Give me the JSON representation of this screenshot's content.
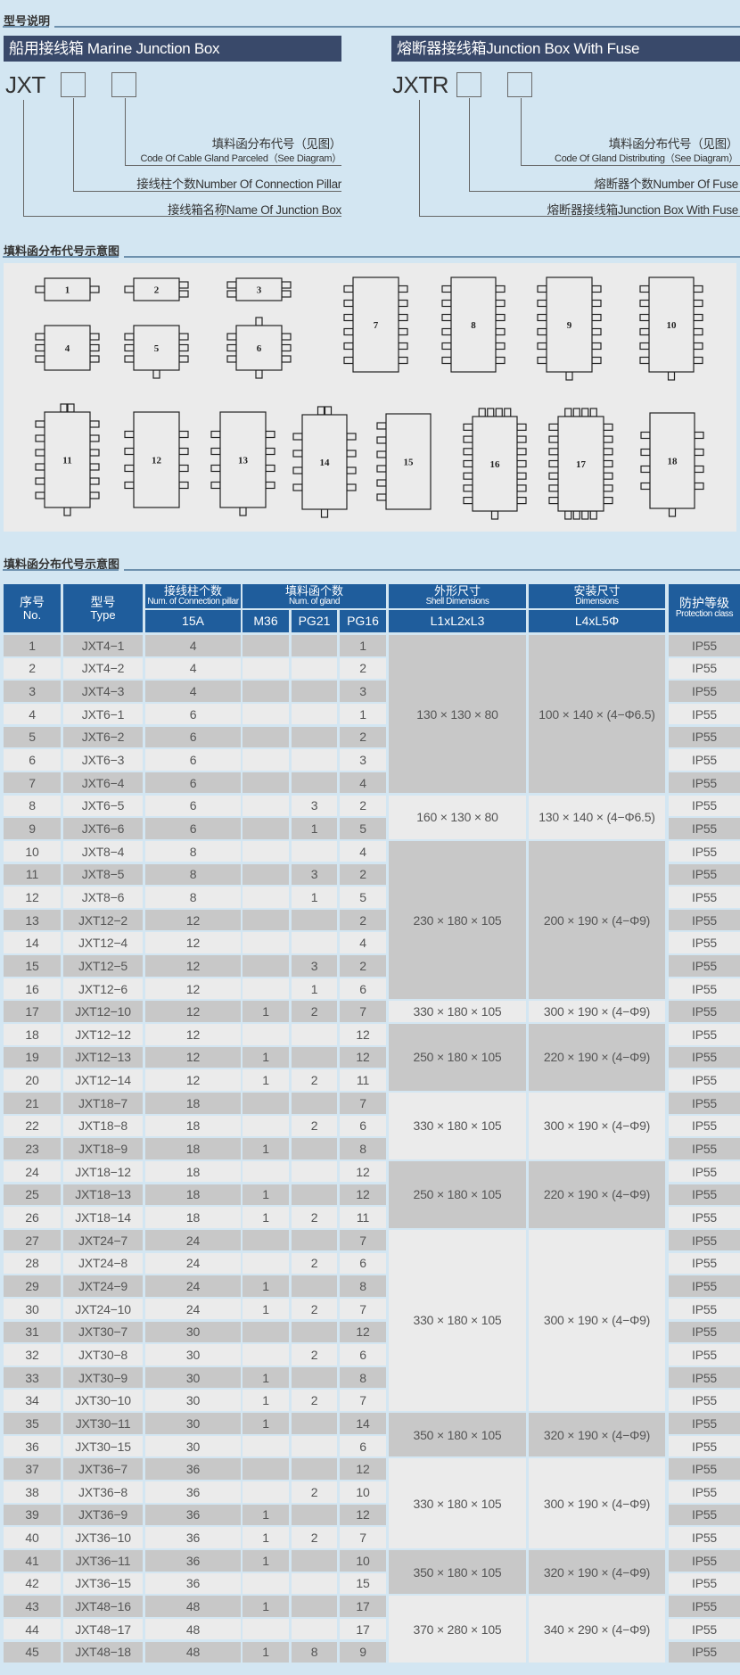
{
  "sections": {
    "model_description": "型号说明",
    "gland_diagram": "填料函分布代号示意图",
    "table_heading": "填料函分布代号示意图"
  },
  "left_panel": {
    "title": "船用接线箱 Marine Junction Box",
    "prefix": "JXT",
    "gland_code_cn": "填料函分布代号（见图）",
    "gland_code_en": "Code Of Cable Gland Parceled（See Diagram）",
    "pillar_count": "接线柱个数Number Of Connection Pillar",
    "box_name": "接线箱名称Name Of Junction Box"
  },
  "right_panel": {
    "title": "熔断器接线箱Junction Box With Fuse",
    "prefix": "JXTR",
    "gland_code_cn": "填料函分布代号（见图）",
    "gland_code_en": "Code Of Gland Distributing（See Diagram）",
    "fuse_count": "熔断器个数Number Of Fuse",
    "box_name": "熔断器接线箱Junction Box With Fuse"
  },
  "diagram": {
    "labels": [
      "1",
      "2",
      "3",
      "4",
      "5",
      "6",
      "7",
      "8",
      "9",
      "10",
      "11",
      "12",
      "13",
      "14",
      "15",
      "16",
      "17",
      "18"
    ]
  },
  "colors": {
    "header_blue": "#1f5d9c",
    "title_bar": "#39496a",
    "background": "#d3e6f2",
    "row_dark": "#c8c8c8",
    "row_light": "#ebebeb"
  },
  "table": {
    "headers": {
      "no_cn": "序号",
      "no_en": "No.",
      "type_cn": "型号",
      "type_en": "Type",
      "pillar_cn": "接线柱个数",
      "pillar_en": "Num. of Connection pillar",
      "gland_cn": "填料函个数",
      "gland_en": "Num. of gland",
      "shell_cn": "外形尺寸",
      "shell_en": "Shell Dimensions",
      "dim_cn": "安装尺寸",
      "dim_en": "Dimensions",
      "prot_cn": "防护等级",
      "prot_en": "Protection class",
      "a15": "15A",
      "m36": "M36",
      "pg21": "PG21",
      "pg16": "PG16",
      "shell_sub": "L1xL2xL3",
      "dim_sub": "L4xL5Φ"
    },
    "columns": [
      "no",
      "type",
      "15A",
      "M36",
      "PG21",
      "PG16",
      "protection"
    ],
    "rows": [
      [
        "1",
        "JXT4−1",
        "4",
        "",
        "",
        "1",
        "IP55"
      ],
      [
        "2",
        "JXT4−2",
        "4",
        "",
        "",
        "2",
        "IP55"
      ],
      [
        "3",
        "JXT4−3",
        "4",
        "",
        "",
        "3",
        "IP55"
      ],
      [
        "4",
        "JXT6−1",
        "6",
        "",
        "",
        "1",
        "IP55"
      ],
      [
        "5",
        "JXT6−2",
        "6",
        "",
        "",
        "2",
        "IP55"
      ],
      [
        "6",
        "JXT6−3",
        "6",
        "",
        "",
        "3",
        "IP55"
      ],
      [
        "7",
        "JXT6−4",
        "6",
        "",
        "",
        "4",
        "IP55"
      ],
      [
        "8",
        "JXT6−5",
        "6",
        "",
        "3",
        "2",
        "IP55"
      ],
      [
        "9",
        "JXT6−6",
        "6",
        "",
        "1",
        "5",
        "IP55"
      ],
      [
        "10",
        "JXT8−4",
        "8",
        "",
        "",
        "4",
        "IP55"
      ],
      [
        "11",
        "JXT8−5",
        "8",
        "",
        "3",
        "2",
        "IP55"
      ],
      [
        "12",
        "JXT8−6",
        "8",
        "",
        "1",
        "5",
        "IP55"
      ],
      [
        "13",
        "JXT12−2",
        "12",
        "",
        "",
        "2",
        "IP55"
      ],
      [
        "14",
        "JXT12−4",
        "12",
        "",
        "",
        "4",
        "IP55"
      ],
      [
        "15",
        "JXT12−5",
        "12",
        "",
        "3",
        "2",
        "IP55"
      ],
      [
        "16",
        "JXT12−6",
        "12",
        "",
        "1",
        "6",
        "IP55"
      ],
      [
        "17",
        "JXT12−10",
        "12",
        "1",
        "2",
        "7",
        "IP55"
      ],
      [
        "18",
        "JXT12−12",
        "12",
        "",
        "",
        "12",
        "IP55"
      ],
      [
        "19",
        "JXT12−13",
        "12",
        "1",
        "",
        "12",
        "IP55"
      ],
      [
        "20",
        "JXT12−14",
        "12",
        "1",
        "2",
        "11",
        "IP55"
      ],
      [
        "21",
        "JXT18−7",
        "18",
        "",
        "",
        "7",
        "IP55"
      ],
      [
        "22",
        "JXT18−8",
        "18",
        "",
        "2",
        "6",
        "IP55"
      ],
      [
        "23",
        "JXT18−9",
        "18",
        "1",
        "",
        "8",
        "IP55"
      ],
      [
        "24",
        "JXT18−12",
        "18",
        "",
        "",
        "12",
        "IP55"
      ],
      [
        "25",
        "JXT18−13",
        "18",
        "1",
        "",
        "12",
        "IP55"
      ],
      [
        "26",
        "JXT18−14",
        "18",
        "1",
        "2",
        "11",
        "IP55"
      ],
      [
        "27",
        "JXT24−7",
        "24",
        "",
        "",
        "7",
        "IP55"
      ],
      [
        "28",
        "JXT24−8",
        "24",
        "",
        "2",
        "6",
        "IP55"
      ],
      [
        "29",
        "JXT24−9",
        "24",
        "1",
        "",
        "8",
        "IP55"
      ],
      [
        "30",
        "JXT24−10",
        "24",
        "1",
        "2",
        "7",
        "IP55"
      ],
      [
        "31",
        "JXT30−7",
        "30",
        "",
        "",
        "12",
        "IP55"
      ],
      [
        "32",
        "JXT30−8",
        "30",
        "",
        "2",
        "6",
        "IP55"
      ],
      [
        "33",
        "JXT30−9",
        "30",
        "1",
        "",
        "8",
        "IP55"
      ],
      [
        "34",
        "JXT30−10",
        "30",
        "1",
        "2",
        "7",
        "IP55"
      ],
      [
        "35",
        "JXT30−11",
        "30",
        "1",
        "",
        "14",
        "IP55"
      ],
      [
        "36",
        "JXT30−15",
        "30",
        "",
        "",
        "6",
        "IP55"
      ],
      [
        "37",
        "JXT36−7",
        "36",
        "",
        "",
        "12",
        "IP55"
      ],
      [
        "38",
        "JXT36−8",
        "36",
        "",
        "2",
        "10",
        "IP55"
      ],
      [
        "39",
        "JXT36−9",
        "36",
        "1",
        "",
        "12",
        "IP55"
      ],
      [
        "40",
        "JXT36−10",
        "36",
        "1",
        "2",
        "7",
        "IP55"
      ],
      [
        "41",
        "JXT36−11",
        "36",
        "1",
        "",
        "10",
        "IP55"
      ],
      [
        "42",
        "JXT36−15",
        "36",
        "",
        "",
        "15",
        "IP55"
      ],
      [
        "43",
        "JXT48−16",
        "48",
        "1",
        "",
        "17",
        "IP55"
      ],
      [
        "44",
        "JXT48−17",
        "48",
        "",
        "",
        "17",
        "IP55"
      ],
      [
        "45",
        "JXT48−18",
        "48",
        "1",
        "8",
        "9",
        "IP55"
      ]
    ],
    "dimension_groups": [
      {
        "from": 1,
        "to": 7,
        "shell": "130 × 130 × 80",
        "install": "100 × 140 × (4−Φ6.5)"
      },
      {
        "from": 8,
        "to": 9,
        "shell": "160 × 130 × 80",
        "install": "130 × 140 × (4−Φ6.5)"
      },
      {
        "from": 10,
        "to": 16,
        "shell": "230 × 180 × 105",
        "install": "200 × 190 × (4−Φ9)"
      },
      {
        "from": 17,
        "to": 17,
        "shell": "330 × 180 × 105",
        "install": "300 × 190 × (4−Φ9)"
      },
      {
        "from": 18,
        "to": 20,
        "shell": "250 × 180 × 105",
        "install": "220 × 190 × (4−Φ9)"
      },
      {
        "from": 21,
        "to": 23,
        "shell": "330 × 180 × 105",
        "install": "300 × 190 × (4−Φ9)"
      },
      {
        "from": 24,
        "to": 26,
        "shell": "250 × 180 × 105",
        "install": "220 × 190 × (4−Φ9)"
      },
      {
        "from": 27,
        "to": 34,
        "shell": "330 × 180 × 105",
        "install": "300 × 190 × (4−Φ9)"
      },
      {
        "from": 35,
        "to": 36,
        "shell": "350 × 180 × 105",
        "install": "320 × 190 × (4−Φ9)"
      },
      {
        "from": 37,
        "to": 40,
        "shell": "330 × 180 × 105",
        "install": "300 × 190 × (4−Φ9)"
      },
      {
        "from": 41,
        "to": 42,
        "shell": "350 × 180 × 105",
        "install": "320 × 190 × (4−Φ9)"
      },
      {
        "from": 43,
        "to": 45,
        "shell": "370 × 280 × 105",
        "install": "340 × 290 × (4−Φ9)"
      }
    ]
  }
}
